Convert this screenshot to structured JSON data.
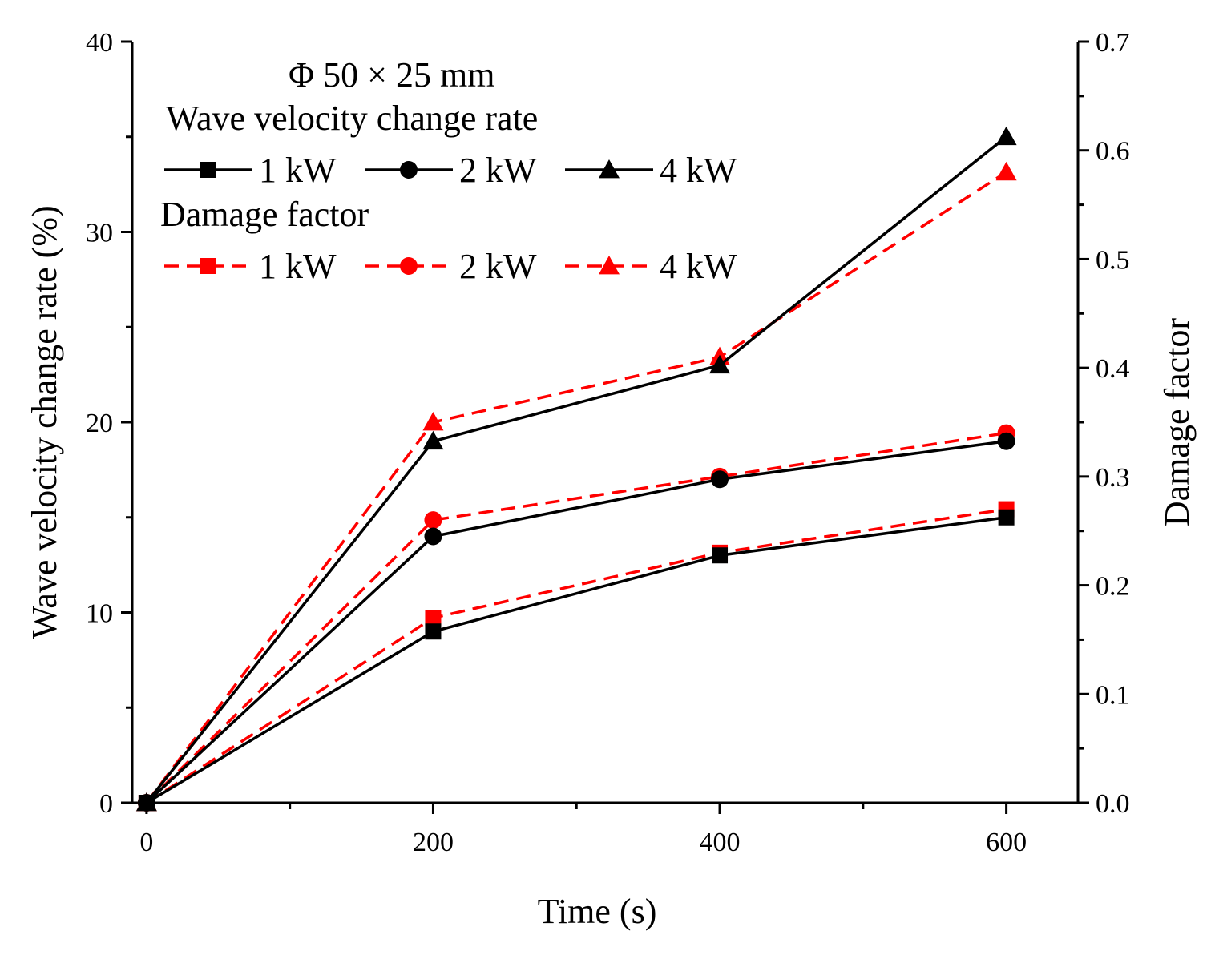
{
  "chart_data": {
    "type": "line",
    "x": [
      0,
      200,
      400,
      600
    ],
    "xlabel": "Time (s)",
    "ylabel_left": "Wave velocity change rate (%)",
    "ylabel_right": "Damage factor",
    "xlim": [
      -10,
      650
    ],
    "ylim_left": [
      0,
      40
    ],
    "ylim_right": [
      0,
      0.7
    ],
    "x_ticks": [
      "0",
      "200",
      "400",
      "600"
    ],
    "y_left_ticks": [
      "0",
      "10",
      "20",
      "30",
      "40"
    ],
    "y_right_ticks": [
      "0.0",
      "0.1",
      "0.2",
      "0.3",
      "0.4",
      "0.5",
      "0.6",
      "0.7"
    ],
    "grid": false,
    "legend_position": "top-left",
    "legend": {
      "title": "Φ 50 × 25 mm",
      "group_wave": "Wave velocity change rate",
      "group_damage": "Damage factor"
    },
    "series": [
      {
        "name": "1 kW",
        "group": "wave",
        "axis": "left",
        "marker": "square",
        "color": "#000000",
        "dash": false,
        "values": [
          0,
          9,
          13,
          15
        ]
      },
      {
        "name": "2 kW",
        "group": "wave",
        "axis": "left",
        "marker": "circle",
        "color": "#000000",
        "dash": false,
        "values": [
          0,
          14,
          17,
          19
        ]
      },
      {
        "name": "4 kW",
        "group": "wave",
        "axis": "left",
        "marker": "triangle",
        "color": "#000000",
        "dash": false,
        "values": [
          0,
          19,
          23,
          35
        ]
      },
      {
        "name": "1 kW",
        "group": "damage",
        "axis": "right",
        "marker": "square",
        "color": "#ff0000",
        "dash": true,
        "values": [
          0,
          0.17,
          0.23,
          0.27
        ]
      },
      {
        "name": "2 kW",
        "group": "damage",
        "axis": "right",
        "marker": "circle",
        "color": "#ff0000",
        "dash": true,
        "values": [
          0,
          0.26,
          0.3,
          0.34
        ]
      },
      {
        "name": "4 kW",
        "group": "damage",
        "axis": "right",
        "marker": "triangle",
        "color": "#ff0000",
        "dash": true,
        "values": [
          0,
          0.35,
          0.41,
          0.58
        ]
      }
    ]
  }
}
